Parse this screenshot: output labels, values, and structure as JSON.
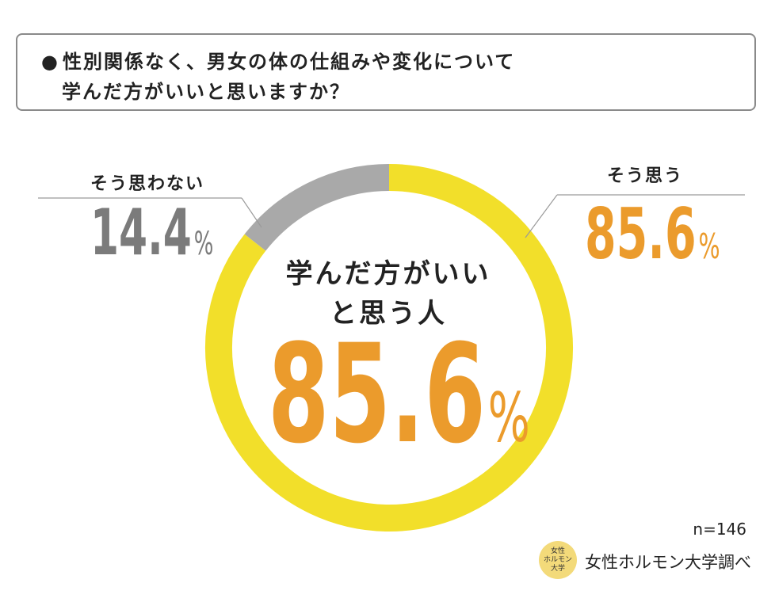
{
  "title": {
    "bullet": "●",
    "line1": "性別関係なく、男女の体の仕組みや変化について",
    "line2": "学んだ方がいいと思いますか？"
  },
  "chart_data": {
    "type": "pie",
    "variant": "donut",
    "unit": "%",
    "slices": [
      {
        "label": "そう思う",
        "value": 85.6,
        "value_text": "85.6",
        "color": "#f2df2a",
        "label_color": "#eb9b2c"
      },
      {
        "label": "そう思わない",
        "value": 14.4,
        "value_text": "14.4",
        "color": "#a9a9a9",
        "label_color": "#7b7b7b"
      }
    ],
    "center": {
      "line1": "学んだ方がいい",
      "line2": "と思う人",
      "value_text": "85.6",
      "unit": "%",
      "color": "#eb9b2c"
    },
    "n": "n=146"
  },
  "source": {
    "logo_line1": "女性",
    "logo_line2": "ホルモン",
    "logo_line3": "大学",
    "text": "女性ホルモン大学調べ"
  }
}
